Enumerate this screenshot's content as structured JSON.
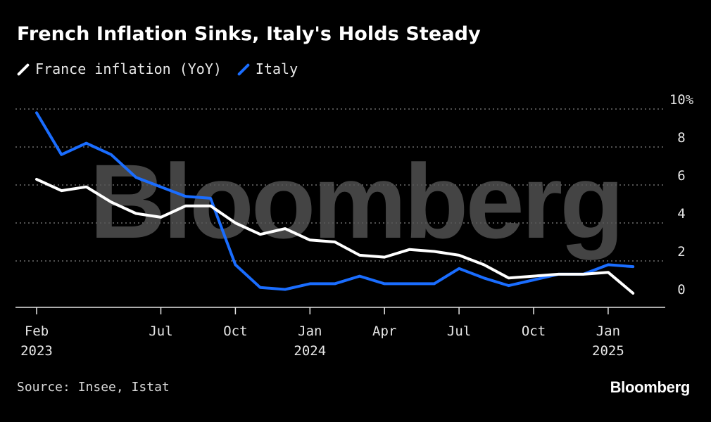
{
  "title": "French Inflation Sinks, Italy's Holds Steady",
  "source": "Source: Insee, Istat",
  "logo": "Bloomberg",
  "watermark": "Bloomberg",
  "colors": {
    "france": "#ffffff",
    "italy": "#1a6dff",
    "grid": "#6e6e6e",
    "background": "#000000"
  },
  "chart_data": {
    "type": "line",
    "title": "French Inflation Sinks, Italy's Holds Steady",
    "xlabel": "",
    "ylabel": "",
    "ylim": [
      0,
      10
    ],
    "grid": true,
    "legend_position": "top-left",
    "x": [
      "2023-02",
      "2023-03",
      "2023-04",
      "2023-05",
      "2023-06",
      "2023-07",
      "2023-08",
      "2023-09",
      "2023-10",
      "2023-11",
      "2023-12",
      "2024-01",
      "2024-02",
      "2024-03",
      "2024-04",
      "2024-05",
      "2024-06",
      "2024-07",
      "2024-08",
      "2024-09",
      "2024-10",
      "2024-11",
      "2024-12",
      "2025-01",
      "2025-02"
    ],
    "series": [
      {
        "name": "France inflation (YoY)",
        "values": [
          6.3,
          5.7,
          5.9,
          5.1,
          4.5,
          4.3,
          4.9,
          4.9,
          4.0,
          3.4,
          3.7,
          3.1,
          3.0,
          2.3,
          2.2,
          2.6,
          2.5,
          2.3,
          1.8,
          1.1,
          1.2,
          1.3,
          1.3,
          1.4,
          0.3
        ]
      },
      {
        "name": "Italy",
        "values": [
          9.8,
          7.6,
          8.2,
          7.6,
          6.4,
          5.9,
          5.4,
          5.3,
          1.8,
          0.6,
          0.5,
          0.8,
          0.8,
          1.2,
          0.8,
          0.8,
          0.8,
          1.6,
          1.1,
          0.7,
          1.0,
          1.3,
          1.3,
          1.8,
          1.7
        ]
      }
    ],
    "y_ticks": [
      {
        "value": 10,
        "label": "10%"
      },
      {
        "value": 8,
        "label": "8"
      },
      {
        "value": 6,
        "label": "6"
      },
      {
        "value": 4,
        "label": "4"
      },
      {
        "value": 2,
        "label": "2"
      },
      {
        "value": 0,
        "label": "0"
      }
    ],
    "x_ticks": [
      {
        "index": 0,
        "label": "Feb",
        "label2": "2023"
      },
      {
        "index": 5,
        "label": "Jul",
        "label2": ""
      },
      {
        "index": 8,
        "label": "Oct",
        "label2": ""
      },
      {
        "index": 11,
        "label": "Jan",
        "label2": "2024"
      },
      {
        "index": 14,
        "label": "Apr",
        "label2": ""
      },
      {
        "index": 17,
        "label": "Jul",
        "label2": ""
      },
      {
        "index": 20,
        "label": "Oct",
        "label2": ""
      },
      {
        "index": 23,
        "label": "Jan",
        "label2": "2025"
      }
    ]
  }
}
